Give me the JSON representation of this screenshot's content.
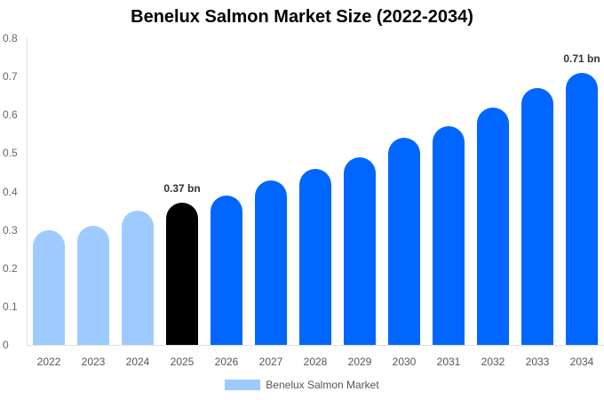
{
  "chart_data": {
    "type": "bar",
    "title": "Benelux Salmon Market Size (2022-2034)",
    "xlabel": "",
    "ylabel": "",
    "ylim": [
      0,
      0.8
    ],
    "yticks": [
      "0",
      "0.1",
      "0.2",
      "0.3",
      "0.4",
      "0.5",
      "0.6",
      "0.7",
      "0.8"
    ],
    "categories": [
      "2022",
      "2023",
      "2024",
      "2025",
      "2026",
      "2027",
      "2028",
      "2029",
      "2030",
      "2031",
      "2032",
      "2033",
      "2034"
    ],
    "series": [
      {
        "name": "Benelux Salmon Market",
        "values": [
          0.3,
          0.31,
          0.35,
          0.37,
          0.39,
          0.43,
          0.46,
          0.49,
          0.54,
          0.57,
          0.62,
          0.67,
          0.71
        ]
      }
    ],
    "bar_colors": [
      "#9ecbff",
      "#9ecbff",
      "#9ecbff",
      "#000000",
      "#0066ff",
      "#0066ff",
      "#0066ff",
      "#0066ff",
      "#0066ff",
      "#0066ff",
      "#0066ff",
      "#0066ff",
      "#0066ff"
    ],
    "annotations": [
      {
        "category": "2025",
        "text": "0.37 bn"
      },
      {
        "category": "2034",
        "text": "0.71 bn"
      }
    ],
    "grid": false,
    "legend_position": "bottom"
  },
  "legend": {
    "label": "Benelux Salmon Market",
    "color": "#9ecbff"
  }
}
